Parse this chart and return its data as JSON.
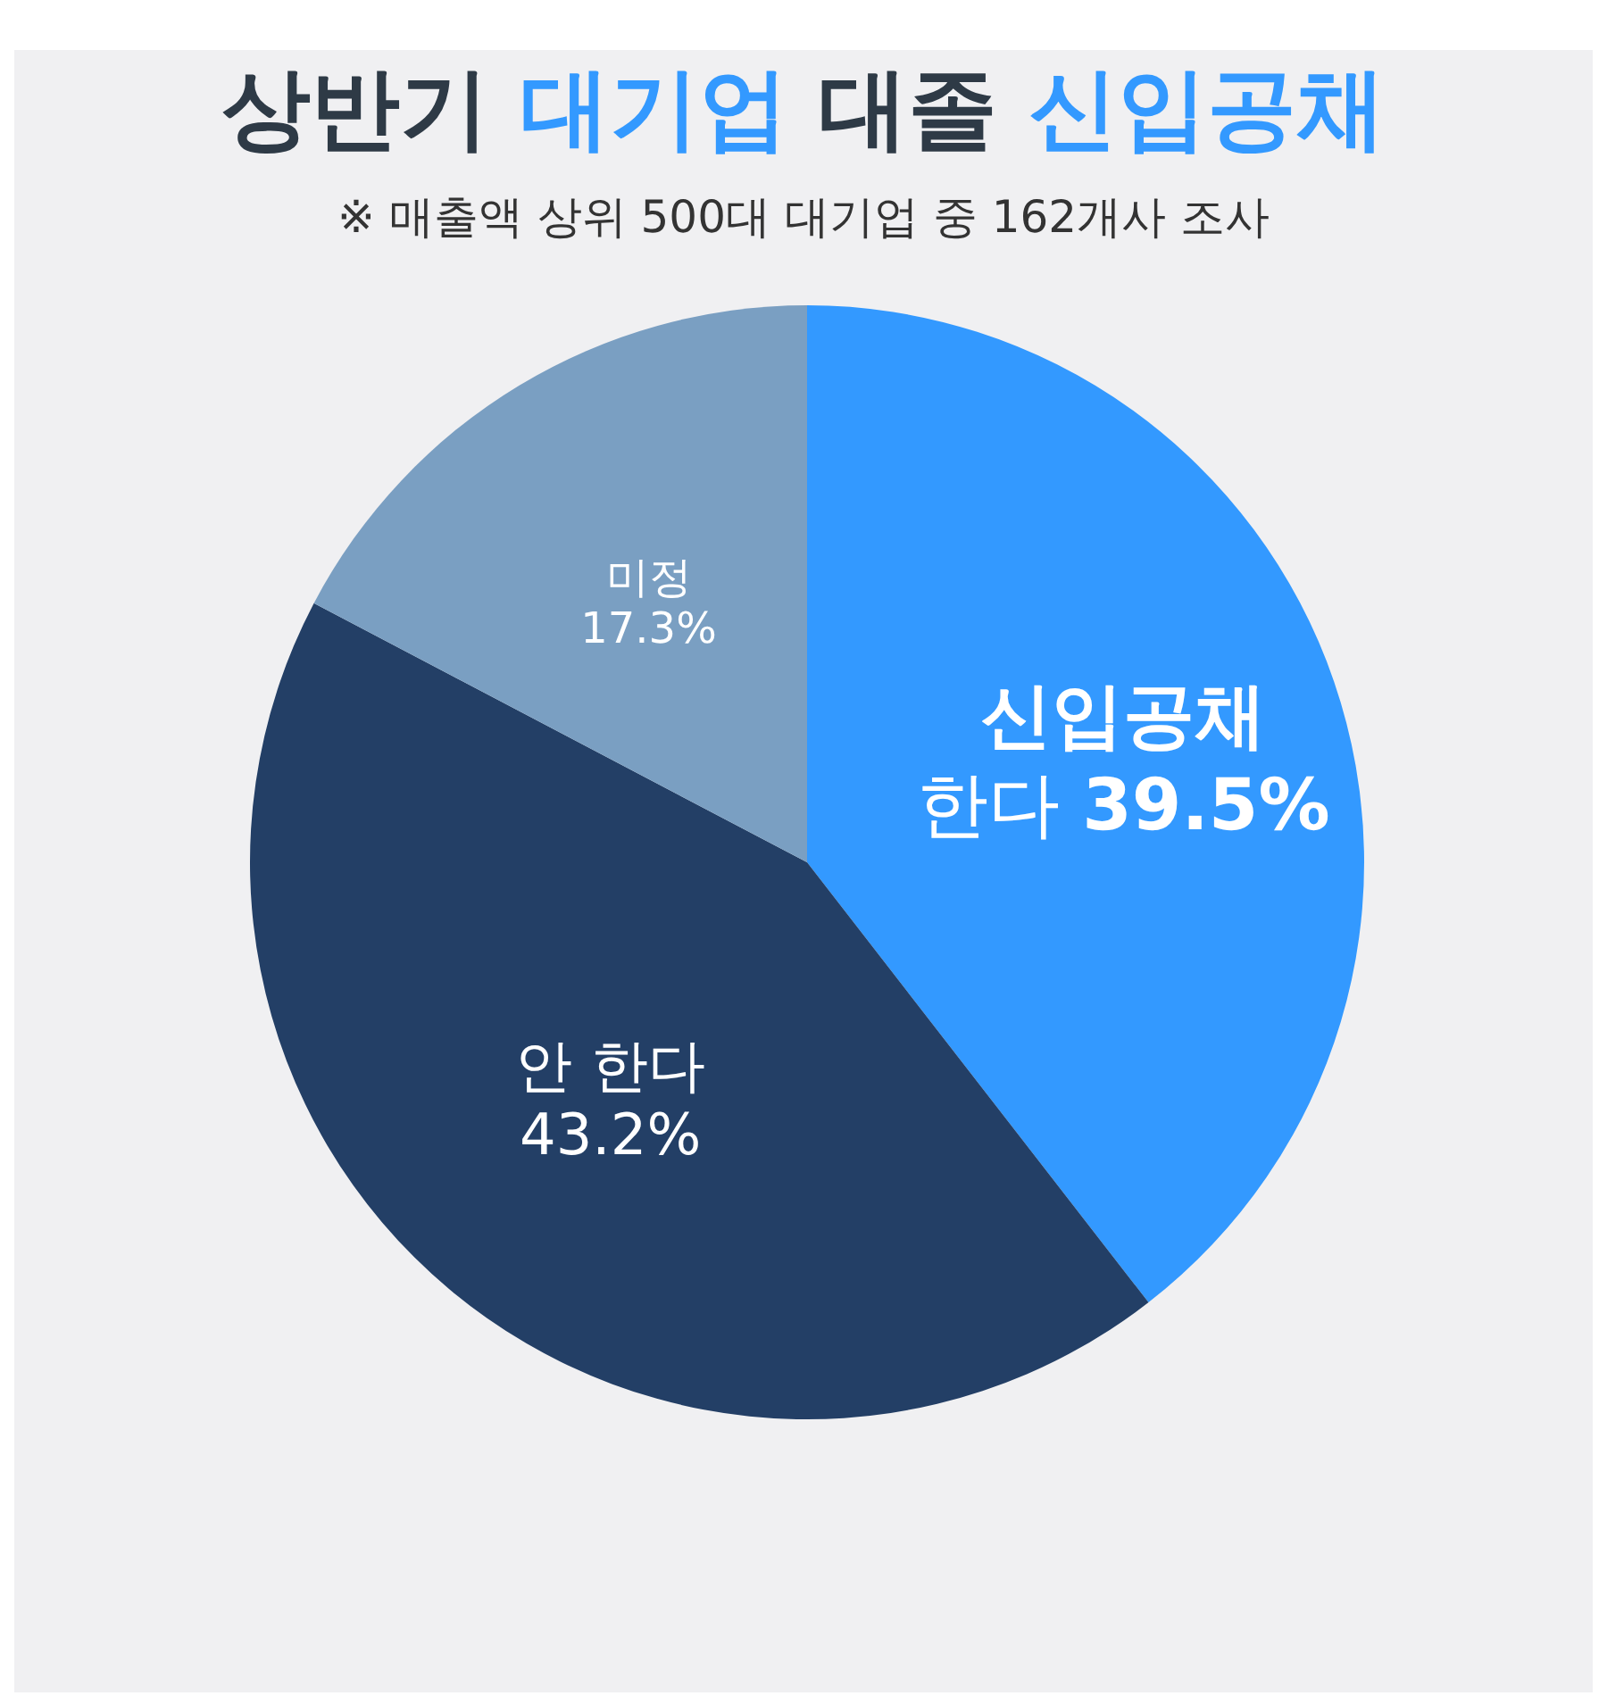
{
  "chart_data": {
    "type": "pie",
    "title": "상반기 대기업 대졸 신입공채",
    "subtitle": "※ 매출액 상위 500대 대기업 중 162개사 조사",
    "categories": [
      "신입공채 한다",
      "안 한다",
      "미정"
    ],
    "values": [
      39.5,
      43.2,
      17.3
    ],
    "value_labels": [
      "39.5%",
      "43.2%",
      "17.3%"
    ],
    "colors": [
      "#3399ff",
      "#233f66",
      "#7a9fc2"
    ]
  }
}
